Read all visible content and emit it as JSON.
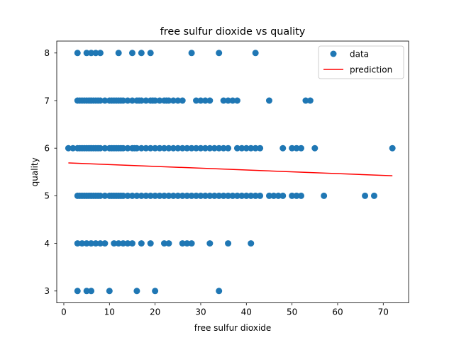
{
  "chart_data": {
    "type": "scatter",
    "title": "free sulfur dioxide vs quality",
    "xlabel": "free sulfur dioxide",
    "ylabel": "quality",
    "xlim": [
      -1.55,
      75.55
    ],
    "ylim": [
      2.75,
      8.25
    ],
    "xticks": [
      0,
      10,
      20,
      30,
      40,
      50,
      60,
      70
    ],
    "yticks": [
      3,
      4,
      5,
      6,
      7,
      8
    ],
    "grid": false,
    "legend_position": "top-right",
    "series": [
      {
        "name": "data",
        "kind": "scatter",
        "color": "#1f77b4",
        "groups": [
          {
            "y": 8,
            "x": [
              3,
              5,
              6,
              7,
              8,
              12,
              15,
              17,
              19,
              28,
              34,
              42
            ]
          },
          {
            "y": 7,
            "x": [
              3,
              3.5,
              4,
              4.5,
              5,
              5.5,
              6,
              6.5,
              7,
              7.5,
              8,
              9,
              10,
              10.5,
              11,
              11.5,
              12,
              12.5,
              13,
              14,
              15,
              16,
              16.5,
              17,
              18,
              19,
              19.5,
              20,
              21,
              22,
              22.5,
              23,
              24,
              25,
              26,
              29,
              30,
              31,
              32,
              35,
              36,
              37,
              38,
              45,
              53,
              54
            ]
          },
          {
            "y": 6,
            "x": [
              1,
              2,
              3,
              3.5,
              4,
              4.5,
              5,
              5.5,
              6,
              6.5,
              7,
              7.5,
              8,
              9,
              10,
              10.5,
              11,
              11.5,
              12,
              12.5,
              13,
              14,
              15,
              15.5,
              16,
              17,
              18,
              19,
              20,
              21,
              22,
              23,
              24,
              25,
              26,
              27,
              28,
              29,
              30,
              31,
              32,
              33,
              34,
              35,
              36,
              38,
              39,
              40,
              41,
              42,
              43,
              48,
              50,
              51,
              52,
              55,
              72
            ]
          },
          {
            "y": 5,
            "x": [
              3,
              3.5,
              4,
              4.5,
              5,
              5.5,
              6,
              6.5,
              7,
              7.5,
              8,
              9,
              10,
              10.5,
              11,
              11.5,
              12,
              12.5,
              13,
              14,
              15,
              16,
              17,
              18,
              19,
              20,
              21,
              22,
              23,
              24,
              25,
              26,
              27,
              28,
              29,
              30,
              31,
              32,
              33,
              34,
              35,
              36,
              37,
              38,
              39,
              40,
              41,
              42,
              43,
              45,
              46,
              47,
              48,
              50,
              51,
              52,
              57,
              66,
              68
            ]
          },
          {
            "y": 4,
            "x": [
              3,
              4,
              5,
              6,
              7,
              8,
              9,
              11,
              12,
              13,
              14,
              15,
              17,
              19,
              22,
              23,
              26,
              27,
              28,
              32,
              36,
              41
            ]
          },
          {
            "y": 3,
            "x": [
              3,
              5,
              6,
              10,
              16,
              20,
              34
            ]
          }
        ]
      },
      {
        "name": "prediction",
        "kind": "line",
        "color": "#ff0000",
        "x": [
          1,
          72
        ],
        "y": [
          5.69,
          5.42
        ]
      }
    ]
  }
}
